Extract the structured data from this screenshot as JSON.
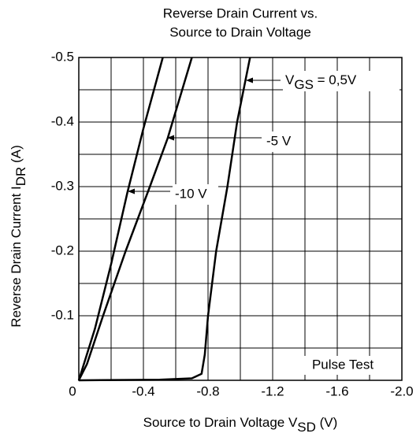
{
  "chart_data": {
    "type": "line",
    "title": [
      "Reverse Drain Current vs.",
      "Source to Drain Voltage"
    ],
    "x_label": {
      "text": "Source to Drain Voltage  V",
      "sub": "SD",
      "tail": "   (V)"
    },
    "y_label": {
      "text": "Reverse Drain Current  I",
      "sub": "DR",
      "tail": "   (A)"
    },
    "xlim": [
      0,
      -2.0
    ],
    "ylim": [
      0,
      -0.5
    ],
    "xticks": [
      0,
      -0.4,
      -0.8,
      -1.2,
      -1.6,
      {
        "value": -2,
        "label": "-2.0"
      }
    ],
    "xgrid_minor": [
      -0.2,
      -0.6,
      -1.0,
      -1.4,
      -1.8
    ],
    "yticks": [
      0,
      -0.1,
      -0.2,
      -0.3,
      -0.4,
      -0.5
    ],
    "ygrid_minor": [
      -0.05,
      -0.15,
      -0.25,
      -0.35,
      -0.45
    ],
    "grid": true,
    "color": "#000000",
    "note": "Pulse Test",
    "series": [
      {
        "name": {
          "text": "V",
          "sub": "GS",
          "tail": " = 0,5V"
        },
        "color": "#000000",
        "x": [
          0,
          -0.5,
          -0.7,
          -0.76,
          -0.78,
          -0.8,
          -0.85,
          -0.92,
          -0.98,
          -1.06
        ],
        "values": [
          0,
          -0.001,
          -0.003,
          -0.01,
          -0.04,
          -0.1,
          -0.2,
          -0.3,
          -0.4,
          -0.5
        ]
      },
      {
        "name": "-5 V",
        "color": "#000000",
        "x": [
          0,
          -0.05,
          -0.15,
          -0.29,
          -0.44,
          -0.55,
          -0.7
        ],
        "values": [
          0,
          -0.025,
          -0.1,
          -0.2,
          -0.3,
          -0.375,
          -0.5
        ]
      },
      {
        "name": "-10 V",
        "color": "#000000",
        "x": [
          0,
          -0.1,
          -0.2,
          -0.3,
          -0.4,
          -0.52
        ],
        "values": [
          0,
          -0.08,
          -0.18,
          -0.29,
          -0.39,
          -0.5
        ]
      }
    ]
  }
}
